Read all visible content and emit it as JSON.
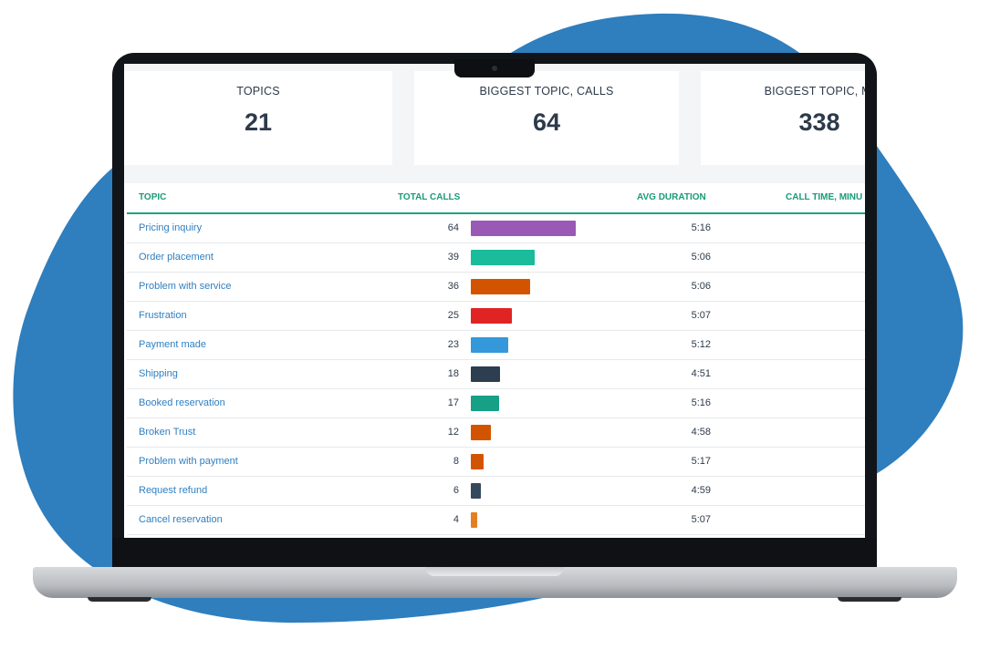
{
  "colors": {
    "blob": "#2f7ebd",
    "accent": "#1a9a7a",
    "link": "#2f7fc1",
    "text": "#2d3a4a"
  },
  "cards": [
    {
      "label": "TOPICS",
      "value": "21"
    },
    {
      "label": "BIGGEST TOPIC, CALLS",
      "value": "64"
    },
    {
      "label": "BIGGEST TOPIC, MI",
      "value": "338"
    }
  ],
  "table": {
    "headers": {
      "topic": "TOPIC",
      "total_calls": "TOTAL CALLS",
      "avg_duration": "AVG DURATION",
      "call_time": "CALL TIME, MINU"
    },
    "max_calls": 64,
    "rows": [
      {
        "topic": "Pricing inquiry",
        "calls": 64,
        "bar_color": "#9b59b6",
        "duration": "5:16"
      },
      {
        "topic": "Order placement",
        "calls": 39,
        "bar_color": "#1abc9c",
        "duration": "5:06"
      },
      {
        "topic": "Problem with service",
        "calls": 36,
        "bar_color": "#d35400",
        "duration": "5:06"
      },
      {
        "topic": "Frustration",
        "calls": 25,
        "bar_color": "#e02424",
        "duration": "5:07"
      },
      {
        "topic": "Payment made",
        "calls": 23,
        "bar_color": "#3498db",
        "duration": "5:12"
      },
      {
        "topic": "Shipping",
        "calls": 18,
        "bar_color": "#2c3e50",
        "duration": "4:51"
      },
      {
        "topic": "Booked reservation",
        "calls": 17,
        "bar_color": "#16a085",
        "duration": "5:16"
      },
      {
        "topic": "Broken Trust",
        "calls": 12,
        "bar_color": "#d35400",
        "duration": "4:58"
      },
      {
        "topic": "Problem with payment",
        "calls": 8,
        "bar_color": "#d35400",
        "duration": "5:17"
      },
      {
        "topic": "Request refund",
        "calls": 6,
        "bar_color": "#34495e",
        "duration": "4:59"
      },
      {
        "topic": "Cancel reservation",
        "calls": 4,
        "bar_color": "#e67e22",
        "duration": "5:07"
      }
    ]
  }
}
